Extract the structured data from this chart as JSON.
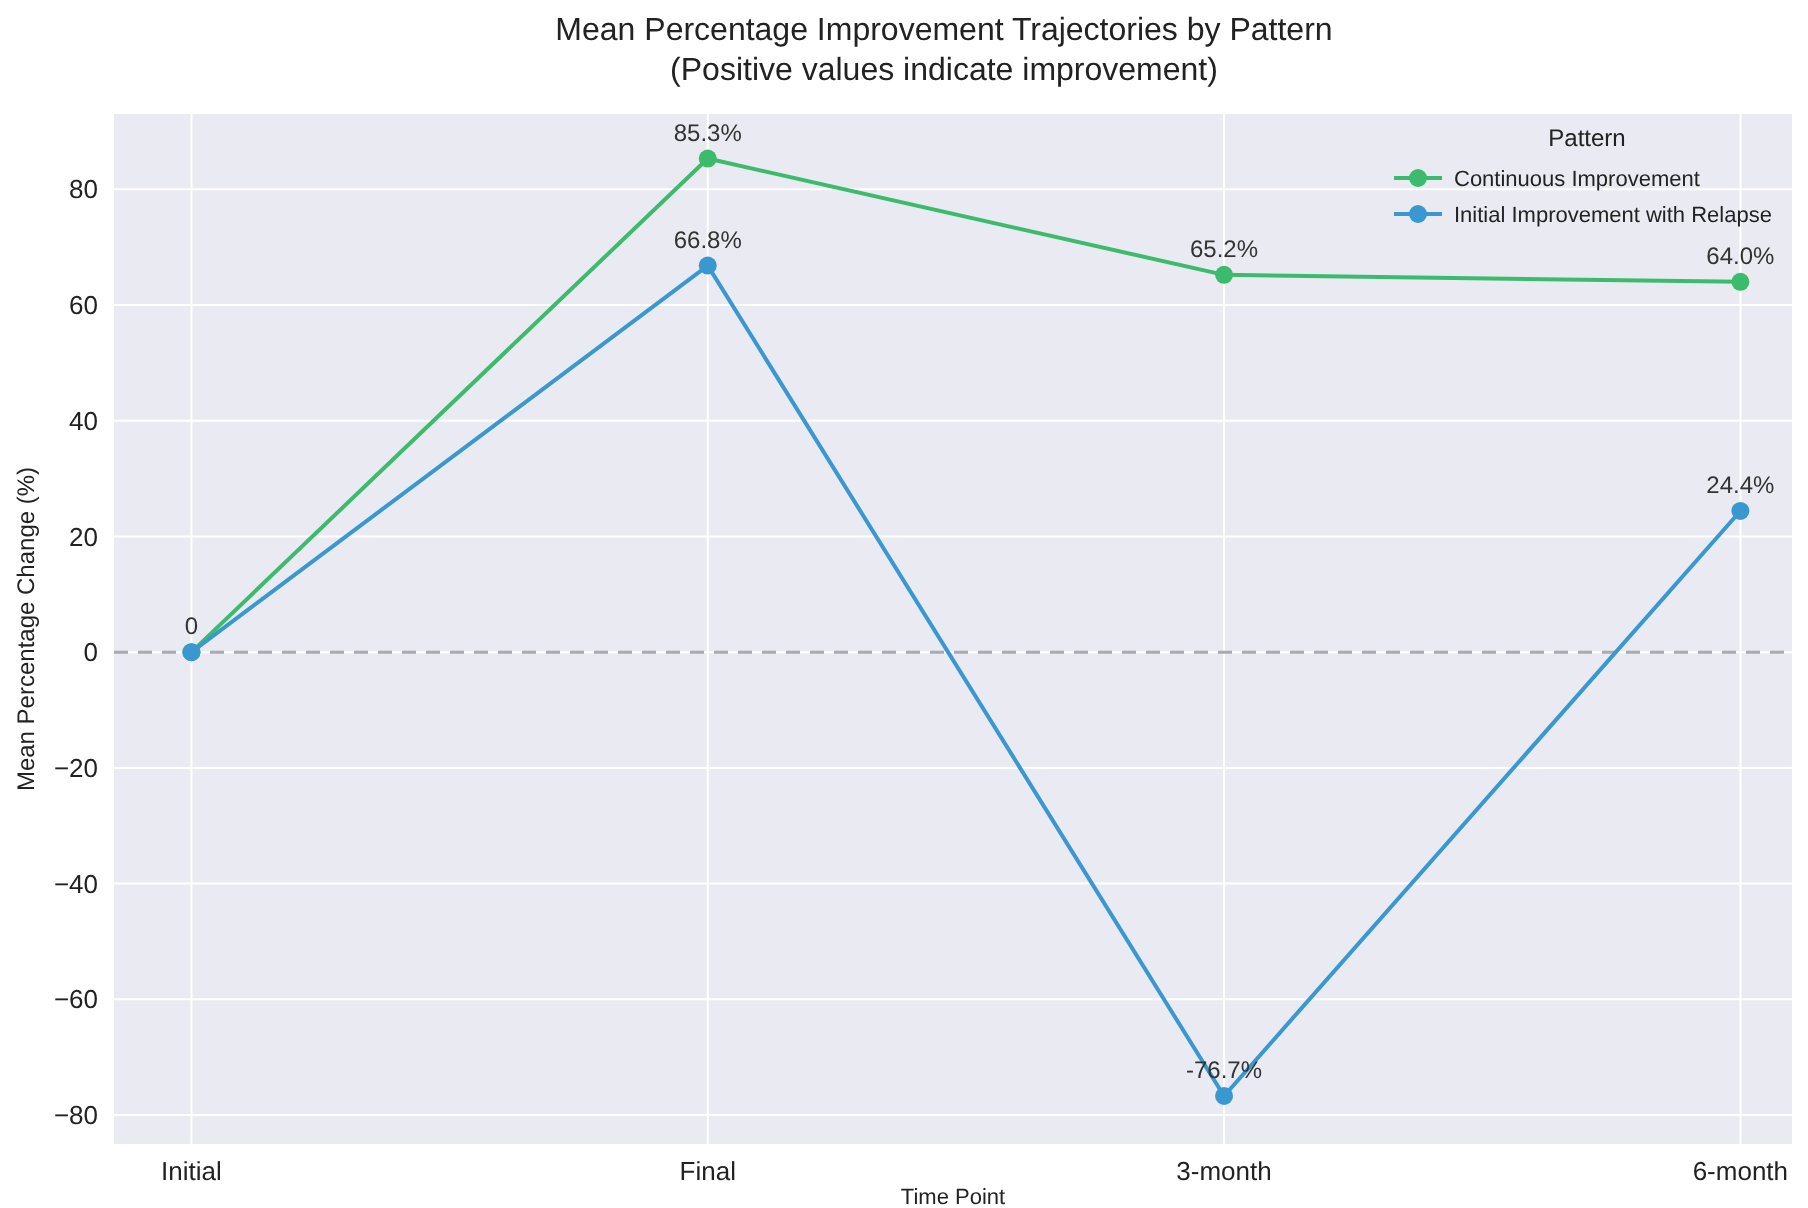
{
  "chart_data": {
    "type": "line",
    "title": "Mean Percentage Improvement Trajectories by Pattern",
    "subtitle": "(Positive values indicate improvement)",
    "xlabel": "Time Point",
    "ylabel": "Mean Percentage Change (%)",
    "legend_title": "Pattern",
    "categories": [
      "Initial",
      "Final",
      "3-month",
      "6-month"
    ],
    "series": [
      {
        "name": "Continuous Improvement",
        "color": "#3dbb6c",
        "values": [
          0,
          85.3,
          65.2,
          64.0
        ],
        "value_labels": [
          null,
          "85.3%",
          "65.2%",
          "64.0%"
        ]
      },
      {
        "name": "Initial Improvement with Relapse",
        "color": "#3a98d0",
        "values": [
          0,
          66.8,
          -76.7,
          24.4
        ],
        "value_labels": [
          "0",
          "66.8%",
          "-76.7%",
          "24.4%"
        ]
      }
    ],
    "ylim": [
      -85,
      93
    ],
    "yticks": [
      -80,
      -60,
      -40,
      -20,
      0,
      20,
      40,
      60,
      80
    ],
    "grid": true,
    "legend": "top right",
    "marker": "circle",
    "line_style": "solid",
    "ref_lines": [
      {
        "axis": "y",
        "value": 0,
        "color": "#a9a9b0",
        "line_style": "dashed"
      }
    ]
  }
}
